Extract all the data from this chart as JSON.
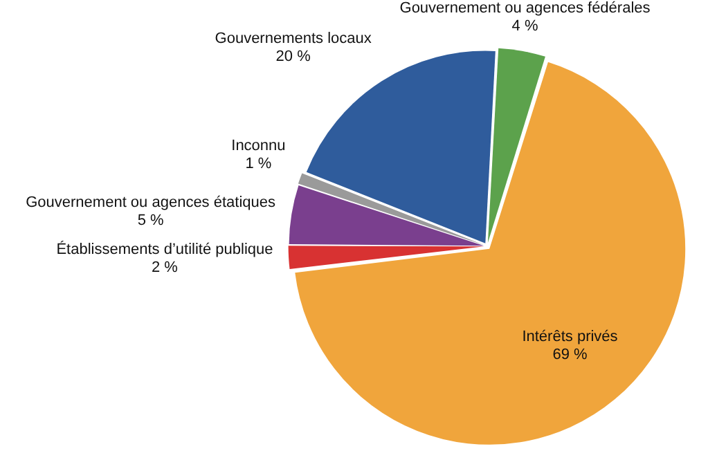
{
  "chart_data": {
    "type": "pie",
    "categories": [
      "Gouvernement ou agences fédérales",
      "Intérêts privés",
      "Établissements d’utilité publique",
      "Gouvernement ou agences étatiques",
      "Inconnu",
      "Gouvernements locaux"
    ],
    "values": [
      4,
      69,
      2,
      5,
      1,
      20
    ],
    "value_labels": [
      "4 %",
      "69 %",
      "2 %",
      "5 %",
      "1 %",
      "20 %"
    ],
    "colors": [
      "#5ca24c",
      "#f0a53c",
      "#d83232",
      "#7a3f8e",
      "#9a9a9a",
      "#2f5c9c"
    ],
    "legend": false
  }
}
